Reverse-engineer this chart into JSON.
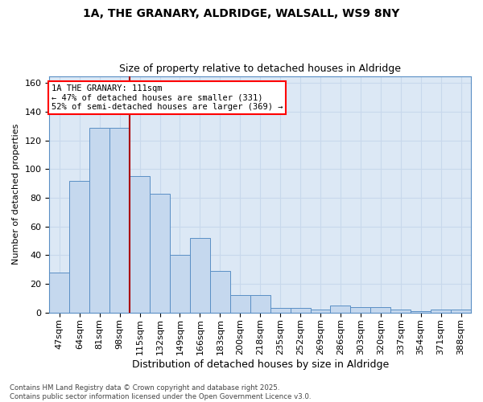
{
  "title_line1": "1A, THE GRANARY, ALDRIDGE, WALSALL, WS9 8NY",
  "title_line2": "Size of property relative to detached houses in Aldridge",
  "xlabel": "Distribution of detached houses by size in Aldridge",
  "ylabel": "Number of detached properties",
  "categories": [
    "47sqm",
    "64sqm",
    "81sqm",
    "98sqm",
    "115sqm",
    "132sqm",
    "149sqm",
    "166sqm",
    "183sqm",
    "200sqm",
    "218sqm",
    "235sqm",
    "252sqm",
    "269sqm",
    "286sqm",
    "303sqm",
    "320sqm",
    "337sqm",
    "354sqm",
    "371sqm",
    "388sqm"
  ],
  "values": [
    28,
    92,
    129,
    129,
    95,
    83,
    40,
    52,
    29,
    12,
    12,
    3,
    3,
    2,
    5,
    4,
    4,
    2,
    1,
    2,
    2
  ],
  "bar_color": "#c5d8ee",
  "bar_edge_color": "#5a8fc5",
  "vline_x_index": 4,
  "vline_color": "#aa0000",
  "annotation_text": "1A THE GRANARY: 111sqm\n← 47% of detached houses are smaller (331)\n52% of semi-detached houses are larger (369) →",
  "grid_color": "#c8d8ec",
  "background_color": "#dce8f5",
  "footer": "Contains HM Land Registry data © Crown copyright and database right 2025.\nContains public sector information licensed under the Open Government Licence v3.0.",
  "ylim": [
    0,
    165
  ],
  "yticks": [
    0,
    20,
    40,
    60,
    80,
    100,
    120,
    140,
    160
  ]
}
